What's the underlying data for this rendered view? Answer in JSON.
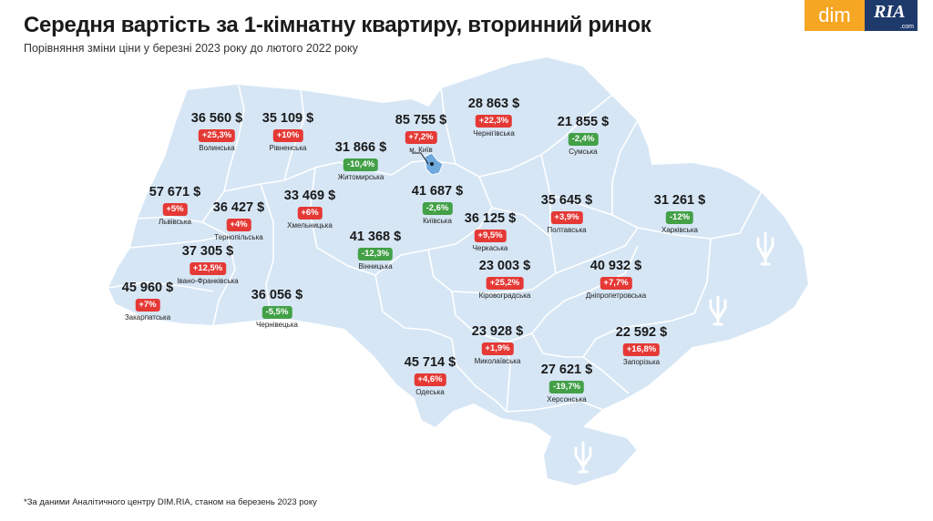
{
  "header": {
    "title": "Середня вартість за 1-кімнатну квартиру, вторинний ринок",
    "subtitle": "Порівняння зміни ціни у березні 2023 року до лютого 2022 року"
  },
  "logo": {
    "left": "dim",
    "right": "RIA",
    "suffix": ".com"
  },
  "footnote": "*За даними Аналітичного центру DIM.RIA, станом на березень 2023 року",
  "colors": {
    "map": "#d6e6f5",
    "border": "#ffffff",
    "increase": "#e53935",
    "decrease": "#43a047",
    "kyiv": "#6fa8dc"
  },
  "chart_data": {
    "type": "choropleth-map",
    "title": "Середня вартість за 1-кімнатну квартиру, вторинний ринок",
    "subtitle": "Порівняння зміни ціни у березні 2023 року до лютого 2022 року",
    "regions": [
      {
        "name": "Волинська",
        "price": "36 560 $",
        "change": "+25,3%",
        "direction": "up"
      },
      {
        "name": "Рівненська",
        "price": "35 109 $",
        "change": "+10%",
        "direction": "up"
      },
      {
        "name": "Житомирська",
        "price": "31 866 $",
        "change": "-10,4%",
        "direction": "down"
      },
      {
        "name": "м. Київ",
        "price": "85 755 $",
        "change": "+7,2%",
        "direction": "up"
      },
      {
        "name": "Чернігівська",
        "price": "28 863 $",
        "change": "+22,3%",
        "direction": "up"
      },
      {
        "name": "Сумська",
        "price": "21 855 $",
        "change": "-2,4%",
        "direction": "down"
      },
      {
        "name": "Львівська",
        "price": "57 671 $",
        "change": "+5%",
        "direction": "up"
      },
      {
        "name": "Тернопільська",
        "price": "36 427 $",
        "change": "+4%",
        "direction": "up"
      },
      {
        "name": "Хмельницька",
        "price": "33 469 $",
        "change": "+6%",
        "direction": "up"
      },
      {
        "name": "Київська",
        "price": "41 687 $",
        "change": "-2,6%",
        "direction": "down"
      },
      {
        "name": "Черкаська",
        "price": "36 125 $",
        "change": "+9,5%",
        "direction": "up"
      },
      {
        "name": "Полтавська",
        "price": "35 645 $",
        "change": "+3,9%",
        "direction": "up"
      },
      {
        "name": "Харківська",
        "price": "31 261 $",
        "change": "-12%",
        "direction": "down"
      },
      {
        "name": "Вінницька",
        "price": "41 368 $",
        "change": "-12,3%",
        "direction": "down"
      },
      {
        "name": "Івано-Франківська",
        "price": "37 305 $",
        "change": "+12,5%",
        "direction": "up"
      },
      {
        "name": "Кіровоградська",
        "price": "23 003 $",
        "change": "+25,2%",
        "direction": "up"
      },
      {
        "name": "Дніпропетровська",
        "price": "40 932 $",
        "change": "+7,7%",
        "direction": "up"
      },
      {
        "name": "Закарпатська",
        "price": "45 960 $",
        "change": "+7%",
        "direction": "up"
      },
      {
        "name": "Чернівецька",
        "price": "36 056 $",
        "change": "-5,5%",
        "direction": "down"
      },
      {
        "name": "Миколаївська",
        "price": "23 928 $",
        "change": "+1,9%",
        "direction": "up"
      },
      {
        "name": "Запорізька",
        "price": "22 592 $",
        "change": "+16,8%",
        "direction": "up"
      },
      {
        "name": "Одеська",
        "price": "45 714 $",
        "change": "+4,6%",
        "direction": "up"
      },
      {
        "name": "Херсонська",
        "price": "27 621 $",
        "change": "-19,7%",
        "direction": "down"
      }
    ]
  }
}
